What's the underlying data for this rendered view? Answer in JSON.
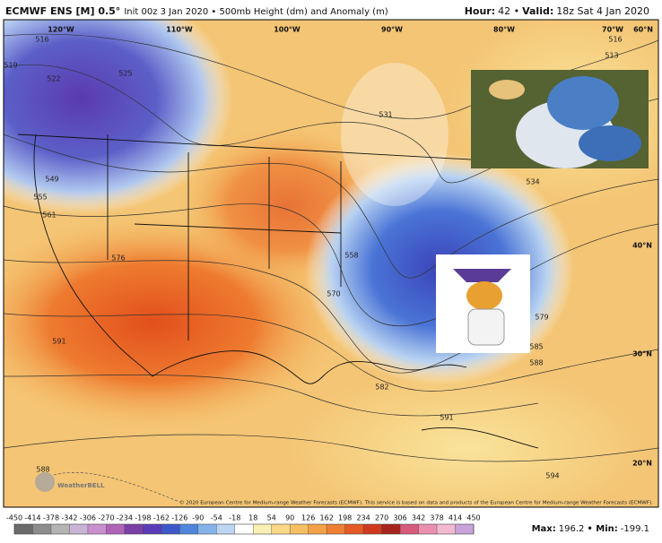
{
  "header": {
    "title": "ECMWF ENS [M] 0.5°",
    "subtitle": "Init 00z 3 Jan 2020 • 500mb Height (dm) and Anomaly (m)",
    "hour_label": "Hour:",
    "hour": "42 •",
    "valid_label": "Valid:",
    "valid": "18z Sat 4 Jan 2020"
  },
  "map": {
    "lon_labels": [
      "120°W",
      "110°W",
      "100°W",
      "90°W",
      "80°W",
      "70°W",
      "60°N"
    ],
    "lat_labels": [
      "40°N",
      "30°N",
      "20°N"
    ],
    "contour_labels": [
      "516",
      "519",
      "522",
      "525",
      "513",
      "516",
      "531",
      "549",
      "555",
      "561",
      "576",
      "591",
      "588",
      "558",
      "570",
      "579",
      "585",
      "588",
      "582",
      "591",
      "594",
      "534"
    ],
    "logo": "WeatherBELL",
    "copyright": "© 2020 European Centre for Medium-range Weather Forecasts (ECMWF). This service is based on data and products of the European Centre for Medium-range Weather Forecasts (ECMWF)."
  },
  "colorbar": {
    "ticks": [
      -450,
      -414,
      -378,
      -342,
      -306,
      -270,
      -234,
      -198,
      -162,
      -126,
      -90,
      -54,
      -18,
      18,
      54,
      90,
      126,
      162,
      198,
      234,
      270,
      306,
      342,
      378,
      414,
      450
    ],
    "colors": [
      "#6a6a6a",
      "#8c8c8c",
      "#b4b4b4",
      "#c9b3d6",
      "#c98fcf",
      "#b064b8",
      "#7b3fa8",
      "#5a3cb8",
      "#3f58c9",
      "#4f86dc",
      "#84b3ea",
      "#bcd6f3",
      "#ffffff",
      "#fbf0b4",
      "#f9d985",
      "#f6c062",
      "#f3a247",
      "#ee7f33",
      "#e55a25",
      "#cf3a1f",
      "#a8241c",
      "#d75a7b",
      "#eb8fb0",
      "#f2b9d0",
      "#c8a2d8"
    ],
    "max_label": "Max:",
    "max": 196.2,
    "min_label": "• Min:",
    "min": -199.1
  }
}
